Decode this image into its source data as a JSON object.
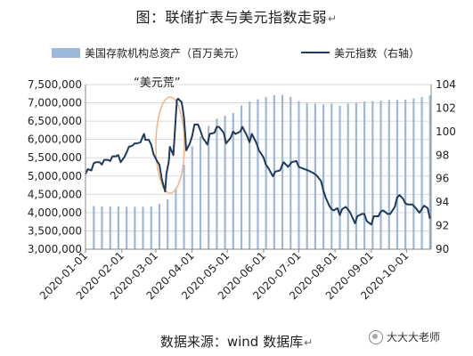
{
  "title": "图：联储扩表与美元指数走弱",
  "paragraph_mark": "↵",
  "source": "数据来源：wind 数据库",
  "watermark": "大大大老师",
  "annotation": "“美元荒”",
  "colors": {
    "bar": "#9eb8d9",
    "line": "#1f3a5c",
    "ellipse": "#f0b78a",
    "grid": "#d9d9d9"
  },
  "chart_data": {
    "type": "bar+line",
    "legend": {
      "placement": "top",
      "bar_label": "美国存款机构总资产（百万美元）",
      "line_label": "美元指数（右轴）"
    },
    "y_left": {
      "range": [
        3000000,
        7500000
      ],
      "ticks": [
        "3,000,000",
        "3,500,000",
        "4,000,000",
        "4,500,000",
        "5,000,000",
        "5,500,000",
        "6,000,000",
        "6,500,000",
        "7,000,000",
        "7,500,000"
      ]
    },
    "y_right": {
      "range": [
        90,
        104
      ],
      "ticks": [
        "90",
        "92",
        "94",
        "96",
        "98",
        "100",
        "102",
        "104"
      ]
    },
    "x_range": [
      "2020-01-01",
      "2020-10-22"
    ],
    "x_ticks": [
      "2020-01-01",
      "2020-02-01",
      "2020-03-01",
      "2020-04-01",
      "2020-05-01",
      "2020-06-01",
      "2020-07-01",
      "2020-08-01",
      "2020-09-01",
      "2020-10-01"
    ],
    "bars": [
      {
        "date": "2020-01-08",
        "value": 4180000
      },
      {
        "date": "2020-01-15",
        "value": 4170000
      },
      {
        "date": "2020-01-22",
        "value": 4170000
      },
      {
        "date": "2020-01-29",
        "value": 4170000
      },
      {
        "date": "2020-02-05",
        "value": 4160000
      },
      {
        "date": "2020-02-12",
        "value": 4160000
      },
      {
        "date": "2020-02-19",
        "value": 4160000
      },
      {
        "date": "2020-02-26",
        "value": 4170000
      },
      {
        "date": "2020-03-04",
        "value": 4240000
      },
      {
        "date": "2020-03-11",
        "value": 4360000
      },
      {
        "date": "2020-03-18",
        "value": 4670000
      },
      {
        "date": "2020-03-25",
        "value": 5310000
      },
      {
        "date": "2020-04-01",
        "value": 5810000
      },
      {
        "date": "2020-04-08",
        "value": 6080000
      },
      {
        "date": "2020-04-15",
        "value": 6370000
      },
      {
        "date": "2020-04-22",
        "value": 6570000
      },
      {
        "date": "2020-04-29",
        "value": 6650000
      },
      {
        "date": "2020-05-06",
        "value": 6720000
      },
      {
        "date": "2020-05-13",
        "value": 6930000
      },
      {
        "date": "2020-05-20",
        "value": 7040000
      },
      {
        "date": "2020-05-27",
        "value": 7100000
      },
      {
        "date": "2020-06-03",
        "value": 7160000
      },
      {
        "date": "2020-06-10",
        "value": 7210000
      },
      {
        "date": "2020-06-17",
        "value": 7220000
      },
      {
        "date": "2020-06-24",
        "value": 7160000
      },
      {
        "date": "2020-07-01",
        "value": 7050000
      },
      {
        "date": "2020-07-08",
        "value": 7000000
      },
      {
        "date": "2020-07-15",
        "value": 6980000
      },
      {
        "date": "2020-07-22",
        "value": 6960000
      },
      {
        "date": "2020-07-29",
        "value": 6980000
      },
      {
        "date": "2020-08-05",
        "value": 6920000
      },
      {
        "date": "2020-08-12",
        "value": 6980000
      },
      {
        "date": "2020-08-19",
        "value": 7010000
      },
      {
        "date": "2020-08-26",
        "value": 7040000
      },
      {
        "date": "2020-09-02",
        "value": 7050000
      },
      {
        "date": "2020-09-09",
        "value": 7060000
      },
      {
        "date": "2020-09-16",
        "value": 7080000
      },
      {
        "date": "2020-09-23",
        "value": 7080000
      },
      {
        "date": "2020-09-30",
        "value": 7090000
      },
      {
        "date": "2020-10-07",
        "value": 7120000
      },
      {
        "date": "2020-10-14",
        "value": 7160000
      },
      {
        "date": "2020-10-21",
        "value": 7200000
      }
    ],
    "line": [
      {
        "date": "2020-01-01",
        "value": 96.4
      },
      {
        "date": "2020-01-03",
        "value": 96.8
      },
      {
        "date": "2020-01-06",
        "value": 96.7
      },
      {
        "date": "2020-01-08",
        "value": 97.3
      },
      {
        "date": "2020-01-10",
        "value": 97.4
      },
      {
        "date": "2020-01-13",
        "value": 97.4
      },
      {
        "date": "2020-01-15",
        "value": 97.2
      },
      {
        "date": "2020-01-17",
        "value": 97.6
      },
      {
        "date": "2020-01-20",
        "value": 97.6
      },
      {
        "date": "2020-01-22",
        "value": 97.5
      },
      {
        "date": "2020-01-24",
        "value": 97.9
      },
      {
        "date": "2020-01-27",
        "value": 97.9
      },
      {
        "date": "2020-01-29",
        "value": 98.0
      },
      {
        "date": "2020-01-31",
        "value": 97.4
      },
      {
        "date": "2020-02-03",
        "value": 97.8
      },
      {
        "date": "2020-02-05",
        "value": 98.2
      },
      {
        "date": "2020-02-07",
        "value": 98.7
      },
      {
        "date": "2020-02-10",
        "value": 98.8
      },
      {
        "date": "2020-02-12",
        "value": 99.0
      },
      {
        "date": "2020-02-14",
        "value": 99.0
      },
      {
        "date": "2020-02-17",
        "value": 99.1
      },
      {
        "date": "2020-02-19",
        "value": 99.6
      },
      {
        "date": "2020-02-20",
        "value": 99.8
      },
      {
        "date": "2020-02-21",
        "value": 99.3
      },
      {
        "date": "2020-02-24",
        "value": 99.3
      },
      {
        "date": "2020-02-26",
        "value": 98.9
      },
      {
        "date": "2020-02-28",
        "value": 98.1
      },
      {
        "date": "2020-03-02",
        "value": 97.5
      },
      {
        "date": "2020-03-04",
        "value": 97.2
      },
      {
        "date": "2020-03-06",
        "value": 96.0
      },
      {
        "date": "2020-03-09",
        "value": 94.9
      },
      {
        "date": "2020-03-10",
        "value": 96.4
      },
      {
        "date": "2020-03-12",
        "value": 97.4
      },
      {
        "date": "2020-03-13",
        "value": 98.7
      },
      {
        "date": "2020-03-16",
        "value": 98.0
      },
      {
        "date": "2020-03-17",
        "value": 99.6
      },
      {
        "date": "2020-03-18",
        "value": 101.2
      },
      {
        "date": "2020-03-19",
        "value": 102.7
      },
      {
        "date": "2020-03-20",
        "value": 102.8
      },
      {
        "date": "2020-03-23",
        "value": 102.5
      },
      {
        "date": "2020-03-24",
        "value": 101.9
      },
      {
        "date": "2020-03-25",
        "value": 101.2
      },
      {
        "date": "2020-03-26",
        "value": 99.9
      },
      {
        "date": "2020-03-27",
        "value": 98.4
      },
      {
        "date": "2020-03-30",
        "value": 99.0
      },
      {
        "date": "2020-04-01",
        "value": 99.6
      },
      {
        "date": "2020-04-03",
        "value": 100.6
      },
      {
        "date": "2020-04-06",
        "value": 100.6
      },
      {
        "date": "2020-04-08",
        "value": 100.1
      },
      {
        "date": "2020-04-10",
        "value": 99.5
      },
      {
        "date": "2020-04-14",
        "value": 98.9
      },
      {
        "date": "2020-04-16",
        "value": 99.8
      },
      {
        "date": "2020-04-20",
        "value": 99.9
      },
      {
        "date": "2020-04-22",
        "value": 100.4
      },
      {
        "date": "2020-04-24",
        "value": 100.4
      },
      {
        "date": "2020-04-28",
        "value": 99.9
      },
      {
        "date": "2020-04-30",
        "value": 99.0
      },
      {
        "date": "2020-05-04",
        "value": 99.5
      },
      {
        "date": "2020-05-06",
        "value": 100.0
      },
      {
        "date": "2020-05-08",
        "value": 99.8
      },
      {
        "date": "2020-05-12",
        "value": 100.0
      },
      {
        "date": "2020-05-14",
        "value": 100.4
      },
      {
        "date": "2020-05-18",
        "value": 99.6
      },
      {
        "date": "2020-05-20",
        "value": 99.1
      },
      {
        "date": "2020-05-22",
        "value": 99.8
      },
      {
        "date": "2020-05-26",
        "value": 99.0
      },
      {
        "date": "2020-05-28",
        "value": 98.4
      },
      {
        "date": "2020-06-01",
        "value": 97.8
      },
      {
        "date": "2020-06-03",
        "value": 97.2
      },
      {
        "date": "2020-06-05",
        "value": 96.9
      },
      {
        "date": "2020-06-09",
        "value": 96.2
      },
      {
        "date": "2020-06-11",
        "value": 96.6
      },
      {
        "date": "2020-06-15",
        "value": 96.7
      },
      {
        "date": "2020-06-18",
        "value": 97.4
      },
      {
        "date": "2020-06-22",
        "value": 97.0
      },
      {
        "date": "2020-06-25",
        "value": 97.4
      },
      {
        "date": "2020-06-29",
        "value": 97.5
      },
      {
        "date": "2020-07-01",
        "value": 97.0
      },
      {
        "date": "2020-07-06",
        "value": 96.8
      },
      {
        "date": "2020-07-09",
        "value": 96.7
      },
      {
        "date": "2020-07-13",
        "value": 96.5
      },
      {
        "date": "2020-07-16",
        "value": 96.3
      },
      {
        "date": "2020-07-20",
        "value": 95.8
      },
      {
        "date": "2020-07-22",
        "value": 95.0
      },
      {
        "date": "2020-07-24",
        "value": 94.4
      },
      {
        "date": "2020-07-27",
        "value": 93.7
      },
      {
        "date": "2020-07-29",
        "value": 93.4
      },
      {
        "date": "2020-07-31",
        "value": 93.3
      },
      {
        "date": "2020-08-03",
        "value": 93.5
      },
      {
        "date": "2020-08-05",
        "value": 92.9
      },
      {
        "date": "2020-08-07",
        "value": 93.4
      },
      {
        "date": "2020-08-10",
        "value": 93.6
      },
      {
        "date": "2020-08-12",
        "value": 93.4
      },
      {
        "date": "2020-08-14",
        "value": 93.1
      },
      {
        "date": "2020-08-18",
        "value": 92.2
      },
      {
        "date": "2020-08-20",
        "value": 92.8
      },
      {
        "date": "2020-08-24",
        "value": 93.0
      },
      {
        "date": "2020-08-26",
        "value": 93.0
      },
      {
        "date": "2020-08-28",
        "value": 92.4
      },
      {
        "date": "2020-09-01",
        "value": 92.1
      },
      {
        "date": "2020-09-03",
        "value": 92.8
      },
      {
        "date": "2020-09-07",
        "value": 92.8
      },
      {
        "date": "2020-09-09",
        "value": 93.2
      },
      {
        "date": "2020-09-11",
        "value": 93.3
      },
      {
        "date": "2020-09-15",
        "value": 93.0
      },
      {
        "date": "2020-09-17",
        "value": 93.0
      },
      {
        "date": "2020-09-21",
        "value": 93.6
      },
      {
        "date": "2020-09-23",
        "value": 94.4
      },
      {
        "date": "2020-09-25",
        "value": 94.6
      },
      {
        "date": "2020-09-28",
        "value": 94.3
      },
      {
        "date": "2020-09-30",
        "value": 93.9
      },
      {
        "date": "2020-10-02",
        "value": 93.8
      },
      {
        "date": "2020-10-06",
        "value": 93.8
      },
      {
        "date": "2020-10-08",
        "value": 93.6
      },
      {
        "date": "2020-10-12",
        "value": 93.1
      },
      {
        "date": "2020-10-14",
        "value": 93.4
      },
      {
        "date": "2020-10-16",
        "value": 93.7
      },
      {
        "date": "2020-10-19",
        "value": 93.5
      },
      {
        "date": "2020-10-21",
        "value": 92.6
      }
    ]
  }
}
